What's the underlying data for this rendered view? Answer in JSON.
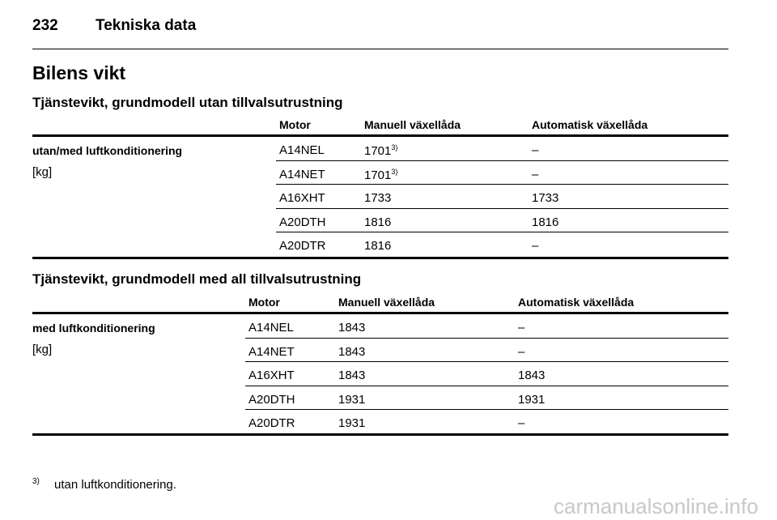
{
  "header": {
    "page": "232",
    "title": "Tekniska data"
  },
  "heading": "Bilens vikt",
  "tables": [
    {
      "title": "Tjänstevikt, grundmodell utan tillvalsutrustning",
      "columns": [
        "Motor",
        "Manuell växellåda",
        "Automatisk växellåda"
      ],
      "label": "utan/med luftkonditionering",
      "unit": "[kg]",
      "rows": [
        [
          {
            "text": "A14NEL"
          },
          {
            "text": "1701",
            "note": "3)"
          },
          {
            "text": "–"
          }
        ],
        [
          {
            "text": "A14NET"
          },
          {
            "text": "1701",
            "note": "3)"
          },
          {
            "text": "–"
          }
        ],
        [
          {
            "text": "A16XHT"
          },
          {
            "text": "1733"
          },
          {
            "text": "1733"
          }
        ],
        [
          {
            "text": "A20DTH"
          },
          {
            "text": "1816"
          },
          {
            "text": "1816"
          }
        ],
        [
          {
            "text": "A20DTR"
          },
          {
            "text": "1816"
          },
          {
            "text": "–"
          }
        ]
      ]
    },
    {
      "title": "Tjänstevikt, grundmodell med all tillvalsutrustning",
      "columns": [
        "Motor",
        "Manuell växellåda",
        "Automatisk växellåda"
      ],
      "label": "med luftkonditionering",
      "unit": "[kg]",
      "rows": [
        [
          {
            "text": "A14NEL"
          },
          {
            "text": "1843"
          },
          {
            "text": "–"
          }
        ],
        [
          {
            "text": "A14NET"
          },
          {
            "text": "1843"
          },
          {
            "text": "–"
          }
        ],
        [
          {
            "text": "A16XHT"
          },
          {
            "text": "1843"
          },
          {
            "text": "1843"
          }
        ],
        [
          {
            "text": "A20DTH"
          },
          {
            "text": "1931"
          },
          {
            "text": "1931"
          }
        ],
        [
          {
            "text": "A20DTR"
          },
          {
            "text": "1931"
          },
          {
            "text": "–"
          }
        ]
      ]
    }
  ],
  "footnote": {
    "marker": "3)",
    "text": "utan luftkonditionering."
  },
  "watermark": "carmanualsonline.info"
}
